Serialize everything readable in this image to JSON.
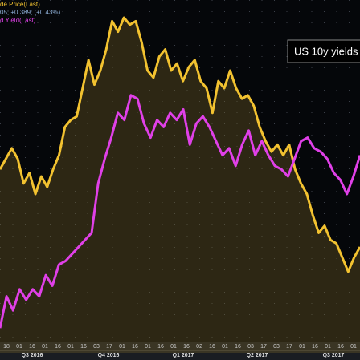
{
  "chart_data": {
    "type": "line",
    "legend": [
      "de Price(Last)",
      "05; +0.389; (+0.43%)",
      "d Yield(Last)"
    ],
    "annotation": "US 10y yields",
    "x_day_labels": [
      "18",
      "01",
      "16",
      "01",
      "16",
      "01",
      "16",
      "03",
      "17",
      "01",
      "16",
      "01",
      "16",
      "01",
      "16",
      "02",
      "16",
      "01",
      "16",
      "03",
      "17",
      "03",
      "17",
      "01",
      "16",
      "01",
      "16",
      "01"
    ],
    "quarters": [
      "Q3 2016",
      "Q4 2016",
      "Q1 2017",
      "Q2 2017",
      "Q3 2017"
    ],
    "ylim": [
      0,
      100
    ],
    "grid": true,
    "series": [
      {
        "name": "Crude Price",
        "color": "#f2c230",
        "values": [
          52,
          55,
          58,
          55,
          48,
          51,
          45,
          50,
          47,
          52,
          56,
          64,
          66,
          67,
          75,
          83,
          76,
          80,
          86,
          94,
          91,
          95,
          93,
          94,
          88,
          80,
          78,
          84,
          86,
          80,
          82,
          77,
          81,
          83,
          77,
          75,
          68,
          77,
          75,
          80,
          75,
          72,
          73,
          70,
          64,
          60,
          57,
          59,
          56,
          59,
          52,
          48,
          45,
          39,
          34,
          36,
          32,
          31,
          27,
          23,
          27,
          30
        ]
      },
      {
        "name": "US 10y Yield",
        "color": "#e040e8",
        "values": [
          7,
          16,
          12,
          18,
          15,
          18,
          16,
          22,
          19,
          25,
          26,
          28,
          30,
          32,
          34,
          48,
          55,
          61,
          68,
          66,
          73,
          72,
          65,
          61,
          66,
          64,
          68,
          66,
          69,
          59,
          65,
          67,
          64,
          60,
          56,
          58,
          53,
          59,
          63,
          56,
          60,
          56,
          53,
          52,
          50,
          55,
          60,
          61,
          58,
          57,
          55,
          51,
          49,
          45,
          50,
          56
        ]
      }
    ]
  }
}
